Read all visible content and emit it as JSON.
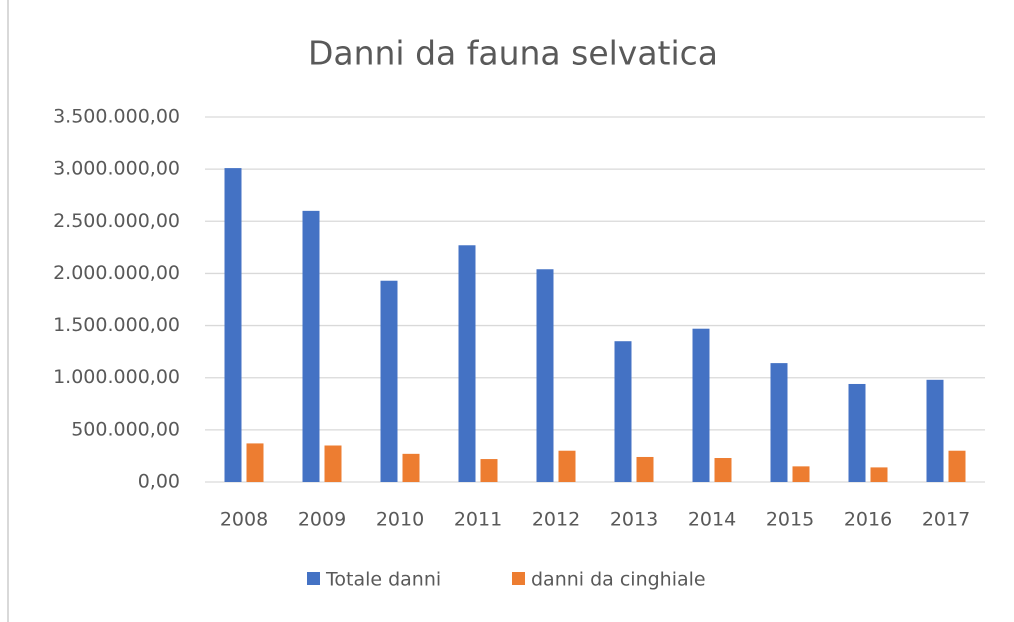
{
  "chart_data": {
    "type": "bar",
    "title": "Danni da fauna selvatica",
    "categories": [
      "2008",
      "2009",
      "2010",
      "2011",
      "2012",
      "2013",
      "2014",
      "2015",
      "2016",
      "2017"
    ],
    "series": [
      {
        "name": "Totale danni",
        "color": "#4472c4",
        "values": [
          3010000,
          2600000,
          1930000,
          2270000,
          2040000,
          1350000,
          1470000,
          1140000,
          940000,
          980000
        ]
      },
      {
        "name": "danni da cinghiale",
        "color": "#ed7d31",
        "values": [
          370000,
          350000,
          270000,
          220000,
          300000,
          240000,
          230000,
          150000,
          140000,
          300000
        ]
      }
    ],
    "ylim": [
      0,
      3500000
    ],
    "yticks": [
      {
        "value": 0,
        "label": "0,00"
      },
      {
        "value": 500000,
        "label": "500.000,00"
      },
      {
        "value": 1000000,
        "label": "1.000.000,00"
      },
      {
        "value": 1500000,
        "label": "1.500.000,00"
      },
      {
        "value": 2000000,
        "label": "2.000.000,00"
      },
      {
        "value": 2500000,
        "label": "2.500.000,00"
      },
      {
        "value": 3000000,
        "label": "3.000.000,00"
      },
      {
        "value": 3500000,
        "label": "3.500.000,00"
      }
    ],
    "grid": true,
    "legend": "bottom"
  }
}
